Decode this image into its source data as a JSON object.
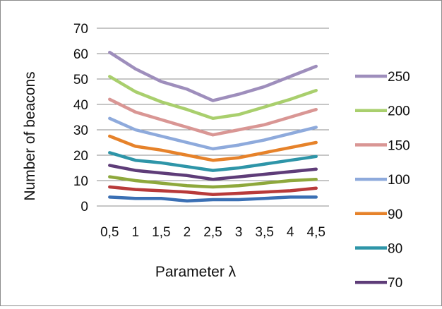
{
  "chart_data": {
    "type": "line",
    "title": "",
    "xlabel": "Parameter λ",
    "ylabel": "Number of beacons",
    "categories": [
      "0,5",
      "1",
      "1,5",
      "2",
      "2,5",
      "3",
      "3,5",
      "4",
      "4,5"
    ],
    "ylim": [
      0,
      70
    ],
    "yticks": [
      0,
      10,
      20,
      30,
      40,
      50,
      60,
      70
    ],
    "grid": "horizontal",
    "legend_position": "right",
    "series": [
      {
        "name": "250",
        "color": "#9e8ebc",
        "values": [
          60.5,
          54,
          49,
          46,
          41.5,
          44,
          47,
          51,
          55
        ]
      },
      {
        "name": "200",
        "color": "#a9cf6d",
        "values": [
          51,
          45,
          41,
          38,
          34.5,
          36,
          39,
          42,
          45.5
        ]
      },
      {
        "name": "150",
        "color": "#d99694",
        "values": [
          42,
          37,
          34,
          31,
          28,
          30,
          32,
          35,
          38
        ]
      },
      {
        "name": "100",
        "color": "#8eaadc",
        "values": [
          34.5,
          30,
          27.5,
          25,
          22.5,
          24,
          26,
          28.5,
          31
        ]
      },
      {
        "name": "90",
        "color": "#e6822a",
        "values": [
          27.5,
          23.5,
          22,
          20,
          18,
          19,
          21,
          23,
          25
        ]
      },
      {
        "name": "80",
        "color": "#2e95a8",
        "values": [
          21,
          18,
          17,
          15.5,
          14,
          15,
          16.5,
          18,
          19.5
        ]
      },
      {
        "name": "70",
        "color": "#5e3c78",
        "values": [
          16,
          14,
          13,
          12,
          10.5,
          11.5,
          12.5,
          13.5,
          14.5
        ]
      },
      {
        "name": "",
        "color": "#8ea83c",
        "values": [
          11.5,
          10,
          9,
          8,
          7.5,
          8,
          9,
          10,
          10.5
        ]
      },
      {
        "name": "",
        "color": "#b83a3a",
        "values": [
          7.5,
          6.5,
          6,
          5.5,
          4.5,
          5,
          5.5,
          6,
          7
        ]
      },
      {
        "name": "",
        "color": "#3a6fb4",
        "values": [
          3.5,
          3,
          3,
          2,
          2.5,
          2.5,
          3,
          3.5,
          3.5
        ]
      }
    ]
  }
}
